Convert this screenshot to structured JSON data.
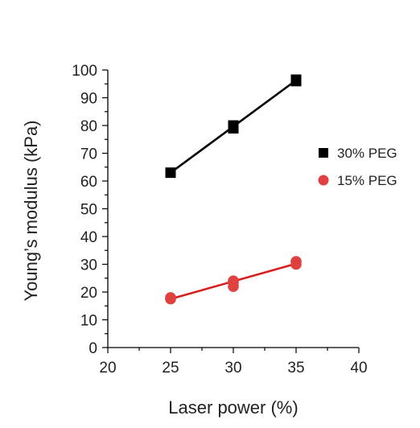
{
  "chart_data": {
    "type": "scatter",
    "title": "",
    "xlabel": "Laser power (%)",
    "ylabel": "Young’s modulus (kPa)",
    "xlim": [
      20,
      40
    ],
    "ylim": [
      0,
      100
    ],
    "x_ticks": [
      20,
      25,
      30,
      35,
      40
    ],
    "y_ticks": [
      0,
      10,
      20,
      30,
      40,
      50,
      60,
      70,
      80,
      90,
      100
    ],
    "grid": false,
    "legend_position": "right",
    "series": [
      {
        "name": "30% PEG",
        "marker": "square",
        "color": "#000000",
        "points": [
          {
            "x": 25,
            "y": 63
          },
          {
            "x": 30,
            "y": 79
          },
          {
            "x": 30,
            "y": 80
          },
          {
            "x": 35,
            "y": 96
          },
          {
            "x": 35,
            "y": 96.5
          }
        ],
        "fit_line": [
          {
            "x": 25,
            "y": 63
          },
          {
            "x": 35,
            "y": 96.3
          }
        ]
      },
      {
        "name": "15% PEG",
        "marker": "circle",
        "color": "#e0403f",
        "line_color": "#d91e1e",
        "points": [
          {
            "x": 25,
            "y": 17.5
          },
          {
            "x": 25,
            "y": 18
          },
          {
            "x": 30,
            "y": 22
          },
          {
            "x": 30,
            "y": 23.5
          },
          {
            "x": 30,
            "y": 24
          },
          {
            "x": 35,
            "y": 30
          },
          {
            "x": 35,
            "y": 31
          }
        ],
        "fit_line": [
          {
            "x": 25,
            "y": 17.5
          },
          {
            "x": 35,
            "y": 30.2
          }
        ]
      }
    ]
  }
}
